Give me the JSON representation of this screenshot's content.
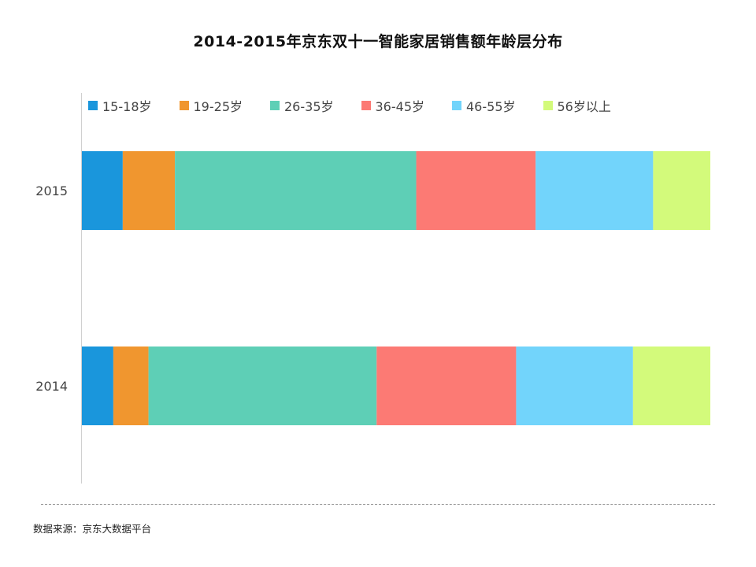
{
  "title": "2014-2015年京东双十一智能家居销售额年龄层分布",
  "source": "数据来源：京东大数据平台",
  "chart_data": {
    "type": "bar",
    "orientation": "horizontal",
    "stacked": true,
    "normalized": true,
    "title": "2014-2015年京东双十一智能家居销售额年龄层分布",
    "categories": [
      "2015",
      "2014"
    ],
    "series": [
      {
        "name": "15-18岁",
        "color": "#1a96dc",
        "values": [
          6.5,
          5.0
        ]
      },
      {
        "name": "19-25岁",
        "color": "#f0962f",
        "values": [
          8.3,
          5.6
        ]
      },
      {
        "name": "26-35岁",
        "color": "#5ecfb6",
        "values": [
          38.4,
          36.3
        ]
      },
      {
        "name": "36-45岁",
        "color": "#fc7a74",
        "values": [
          19.0,
          22.2
        ]
      },
      {
        "name": "46-55岁",
        "color": "#72d4fb",
        "values": [
          18.7,
          18.6
        ]
      },
      {
        "name": "56岁以上",
        "color": "#d3fa7b",
        "values": [
          9.1,
          12.3
        ]
      }
    ],
    "xlim": [
      0,
      100
    ],
    "grid": false,
    "legend_position": "top"
  }
}
